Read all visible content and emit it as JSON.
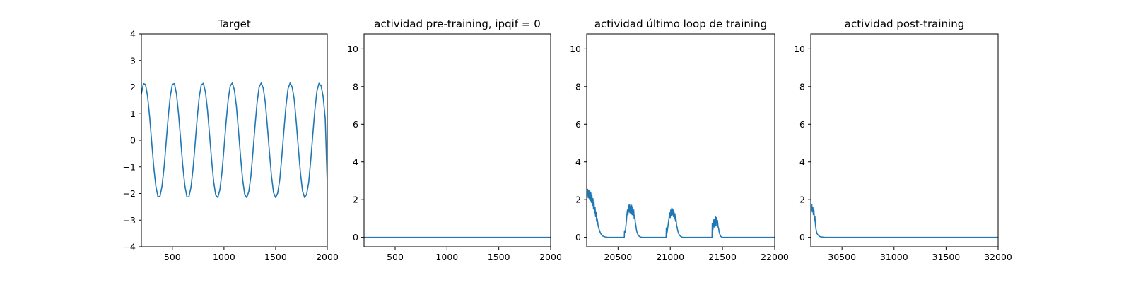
{
  "chart_data": [
    {
      "type": "line",
      "title": "Target",
      "xlim": [
        200,
        2000
      ],
      "ylim": [
        -4,
        4
      ],
      "xticks": [
        500,
        1000,
        1500,
        2000
      ],
      "yticks": [
        -4,
        -3,
        -2,
        -1,
        0,
        1,
        2,
        3,
        4
      ],
      "xticklabels": [
        "500",
        "1000",
        "1500",
        "2000"
      ],
      "yticklabels": [
        "−4",
        "−3",
        "−2",
        "−1",
        "0",
        "1",
        "2",
        "3",
        "4"
      ],
      "series": [
        {
          "color": "#1f77b4",
          "x": [
            200,
            220,
            240,
            260,
            280,
            300,
            320,
            340,
            360,
            380,
            400,
            420,
            440,
            460,
            480,
            500,
            520,
            540,
            560,
            580,
            600,
            620,
            640,
            660,
            680,
            700,
            720,
            740,
            760,
            780,
            800,
            820,
            840,
            860,
            880,
            900,
            920,
            940,
            960,
            980,
            1000,
            1020,
            1040,
            1060,
            1080,
            1100,
            1120,
            1140,
            1160,
            1180,
            1200,
            1220,
            1240,
            1260,
            1280,
            1300,
            1320,
            1340,
            1360,
            1380,
            1400,
            1420,
            1440,
            1460,
            1480,
            1500,
            1520,
            1540,
            1560,
            1580,
            1600,
            1620,
            1640,
            1660,
            1680,
            1700,
            1720,
            1740,
            1760,
            1780,
            1800,
            1820,
            1840,
            1860,
            1880,
            1900,
            1920,
            1940,
            1960,
            1980,
            2000
          ],
          "y": [
            1.74,
            2.13,
            2.1,
            1.66,
            0.89,
            -0.07,
            -1.01,
            -1.72,
            -2.11,
            -2.11,
            -1.72,
            -1.01,
            -0.07,
            0.89,
            1.66,
            2.1,
            2.13,
            1.74,
            0.99,
            0.05,
            -0.92,
            -1.68,
            -2.11,
            -2.13,
            -1.77,
            -1.08,
            -0.15,
            0.82,
            1.62,
            2.08,
            2.14,
            1.82,
            1.15,
            0.22,
            -0.74,
            -1.56,
            -2.06,
            -2.15,
            -1.86,
            -1.22,
            -0.3,
            0.67,
            1.51,
            2.04,
            2.15,
            1.9,
            1.29,
            0.37,
            -0.6,
            -1.46,
            -2.02,
            -2.15,
            -1.93,
            -1.36,
            -0.45,
            0.52,
            1.4,
            2.0,
            2.15,
            1.96,
            1.42,
            0.52,
            -0.45,
            -1.36,
            -1.97,
            -2.15,
            -1.98,
            -1.48,
            -0.6,
            0.37,
            1.29,
            1.94,
            2.15,
            2.0,
            1.54,
            0.67,
            -0.3,
            -1.22,
            -1.9,
            -2.15,
            -2.03,
            -1.59,
            -0.74,
            0.22,
            1.15,
            1.86,
            2.14,
            2.05,
            1.64,
            0.82,
            -1.65
          ]
        }
      ]
    },
    {
      "type": "line",
      "title": "actividad pre-training, ipqif = 0",
      "xlim": [
        200,
        2000
      ],
      "ylim": [
        -0.5,
        10.8
      ],
      "xticks": [
        500,
        1000,
        1500,
        2000
      ],
      "yticks": [
        0,
        2,
        4,
        6,
        8,
        10
      ],
      "xticklabels": [
        "500",
        "1000",
        "1500",
        "2000"
      ],
      "yticklabels": [
        "0",
        "2",
        "4",
        "6",
        "8",
        "10"
      ],
      "series": [
        {
          "color": "#1f77b4",
          "x": [
            200,
            2000
          ],
          "y": [
            0,
            0
          ]
        }
      ]
    },
    {
      "type": "line",
      "title": "actividad último loop de training",
      "xlim": [
        20200,
        22000
      ],
      "ylim": [
        -0.5,
        10.8
      ],
      "xticks": [
        20500,
        21000,
        21500,
        22000
      ],
      "yticks": [
        0,
        2,
        4,
        6,
        8,
        10
      ],
      "xticklabels": [
        "20500",
        "21000",
        "21500",
        "22000"
      ],
      "yticklabels": [
        "0",
        "2",
        "4",
        "6",
        "8",
        "10"
      ],
      "series": [
        {
          "color": "#1f77b4",
          "x": [
            20200,
            20205,
            20210,
            20215,
            20220,
            20225,
            20230,
            20235,
            20240,
            20245,
            20250,
            20255,
            20260,
            20265,
            20270,
            20275,
            20280,
            20285,
            20290,
            20295,
            20300,
            20310,
            20320,
            20330,
            20340,
            20350,
            20365,
            20380,
            20400,
            20560,
            20562,
            20570,
            20575,
            20580,
            20585,
            20590,
            20595,
            20600,
            20605,
            20610,
            20615,
            20620,
            20625,
            20630,
            20635,
            20640,
            20645,
            20650,
            20655,
            20660,
            20665,
            20670,
            20675,
            20680,
            20690,
            20700,
            20710,
            20720,
            20740,
            20760,
            20960,
            20962,
            20968,
            20972,
            20978,
            20983,
            20990,
            20995,
            21000,
            21005,
            21010,
            21015,
            21020,
            21025,
            21030,
            21035,
            21040,
            21045,
            21050,
            21055,
            21060,
            21065,
            21070,
            21075,
            21080,
            21090,
            21100,
            21110,
            21120,
            21140,
            21160,
            21400,
            21402,
            21408,
            21412,
            21418,
            21422,
            21428,
            21432,
            21438,
            21442,
            21448,
            21452,
            21458,
            21462,
            21468,
            21472,
            21478,
            21482,
            21488,
            21495,
            21505,
            21515,
            21530,
            21550,
            22000
          ],
          "y": [
            2.6,
            2.2,
            2.55,
            2.1,
            2.5,
            2.05,
            2.45,
            1.95,
            2.35,
            1.85,
            2.2,
            1.7,
            2.05,
            1.5,
            1.85,
            1.3,
            1.6,
            1.1,
            1.35,
            0.85,
            1.0,
            0.6,
            0.4,
            0.25,
            0.15,
            0.08,
            0.04,
            0.02,
            0.0,
            0.0,
            0.35,
            0.25,
            0.6,
            0.85,
            1.2,
            1.45,
            1.2,
            1.7,
            1.35,
            1.75,
            1.3,
            1.65,
            1.25,
            1.7,
            1.2,
            1.6,
            1.15,
            1.45,
            1.0,
            1.15,
            0.8,
            0.65,
            0.45,
            0.3,
            0.15,
            0.07,
            0.03,
            0.01,
            0.0,
            0.0,
            0.0,
            0.5,
            0.2,
            0.35,
            0.6,
            0.8,
            1.1,
            1.3,
            1.05,
            1.45,
            1.15,
            1.55,
            1.2,
            1.5,
            1.1,
            1.4,
            1.0,
            1.25,
            0.85,
            1.0,
            0.65,
            0.55,
            0.4,
            0.3,
            0.2,
            0.1,
            0.05,
            0.02,
            0.0,
            0.0,
            0.0,
            0.0,
            0.75,
            0.4,
            0.6,
            0.95,
            0.55,
            0.85,
            1.1,
            0.6,
            1.05,
            0.75,
            0.9,
            0.55,
            0.5,
            0.3,
            0.2,
            0.12,
            0.06,
            0.03,
            0.01,
            0.0,
            0.0,
            0.0,
            0.0,
            0.0
          ]
        }
      ]
    },
    {
      "type": "line",
      "title": "actividad post-training",
      "xlim": [
        30200,
        32000
      ],
      "ylim": [
        -0.5,
        10.8
      ],
      "xticks": [
        30500,
        31000,
        31500,
        32000
      ],
      "yticks": [
        0,
        2,
        4,
        6,
        8,
        10
      ],
      "xticklabels": [
        "30500",
        "31000",
        "31500",
        "32000"
      ],
      "yticklabels": [
        "0",
        "2",
        "4",
        "6",
        "8",
        "10"
      ],
      "series": [
        {
          "color": "#1f77b4",
          "x": [
            30200,
            30205,
            30210,
            30215,
            30220,
            30225,
            30230,
            30235,
            30240,
            30245,
            30250,
            30255,
            30260,
            30270,
            30280,
            30290,
            30300,
            30320,
            30340,
            30400,
            32000
          ],
          "y": [
            1.8,
            1.45,
            1.75,
            1.35,
            1.6,
            1.2,
            1.45,
            0.9,
            1.1,
            0.65,
            0.45,
            0.3,
            0.2,
            0.12,
            0.07,
            0.04,
            0.02,
            0.01,
            0.0,
            0.0,
            0.0
          ]
        }
      ]
    }
  ]
}
